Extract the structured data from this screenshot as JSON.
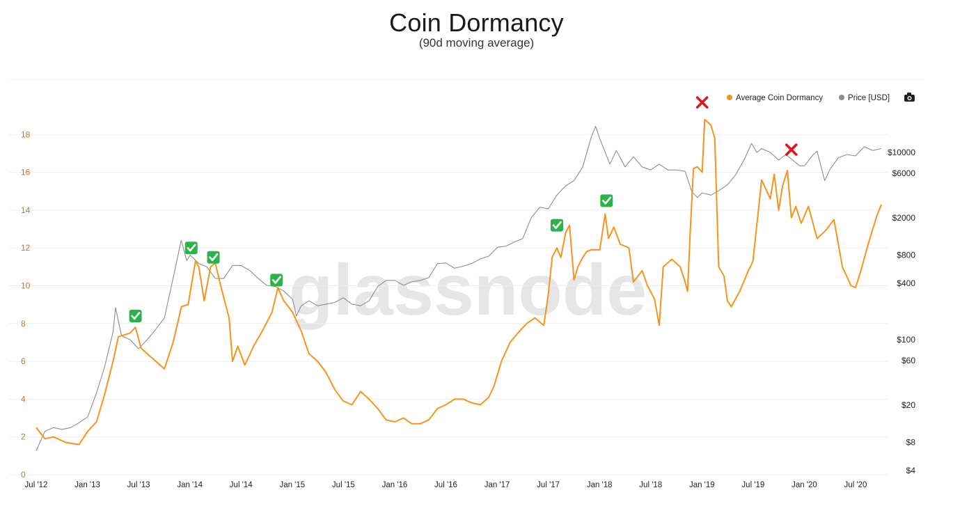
{
  "chart_data": {
    "type": "line",
    "title": "Coin Dormancy",
    "subtitle": "(90d moving average)",
    "watermark": "glassnode",
    "legend": {
      "placement": "top-right",
      "items": [
        {
          "label": "Average Coin Dormancy",
          "color": "#f7931a"
        },
        {
          "label": "Price [USD]",
          "color": "#8c8c8c"
        }
      ]
    },
    "camera_icon": "camera-icon",
    "grid": true,
    "x_axis": {
      "ticks": [
        "Jul '12",
        "Jan '13",
        "Jul '13",
        "Jan '14",
        "Jul '14",
        "Jan '15",
        "Jul '15",
        "Jan '16",
        "Jul '16",
        "Jan '17",
        "Jul '17",
        "Jan '18",
        "Jul '18",
        "Jan '19",
        "Jul '19",
        "Jan '20",
        "Jul '20"
      ],
      "range": [
        "2012-07-01",
        "2020-10-01"
      ]
    },
    "y_left": {
      "label": "",
      "range": [
        0,
        20
      ],
      "ticks": [
        0,
        2,
        4,
        6,
        8,
        10,
        12,
        14,
        16,
        18
      ],
      "color": "#c47a1a"
    },
    "y_right": {
      "label": "",
      "scale": "log",
      "range": [
        4,
        15000
      ],
      "ticks": [
        {
          "value": 4,
          "label": "$4"
        },
        {
          "value": 8,
          "label": "$8"
        },
        {
          "value": 20,
          "label": "$20"
        },
        {
          "value": 60,
          "label": "$60"
        },
        {
          "value": 100,
          "label": "$100"
        },
        {
          "value": 400,
          "label": "$400"
        },
        {
          "value": 800,
          "label": "$800"
        },
        {
          "value": 2000,
          "label": "$2000"
        },
        {
          "value": 6000,
          "label": "$6000"
        },
        {
          "value": 10000,
          "label": "$10000"
        }
      ]
    },
    "series": [
      {
        "name": "Average Coin Dormancy",
        "axis": "left",
        "color": "#f7931a",
        "points": [
          [
            "2012-07-01",
            2.5
          ],
          [
            "2012-08-01",
            1.9
          ],
          [
            "2012-09-01",
            2.0
          ],
          [
            "2012-10-15",
            1.7
          ],
          [
            "2012-12-01",
            1.6
          ],
          [
            "2013-01-01",
            2.3
          ],
          [
            "2013-02-01",
            2.8
          ],
          [
            "2013-03-01",
            4.2
          ],
          [
            "2013-04-01",
            6.0
          ],
          [
            "2013-04-20",
            7.3
          ],
          [
            "2013-06-01",
            7.5
          ],
          [
            "2013-06-20",
            7.8
          ],
          [
            "2013-07-10",
            6.7
          ],
          [
            "2013-08-01",
            6.4
          ],
          [
            "2013-09-01",
            6.0
          ],
          [
            "2013-10-01",
            5.6
          ],
          [
            "2013-11-01",
            7.0
          ],
          [
            "2013-12-01",
            8.9
          ],
          [
            "2013-12-25",
            9.0
          ],
          [
            "2014-01-05",
            10.0
          ],
          [
            "2014-01-20",
            11.3
          ],
          [
            "2014-02-01",
            11.0
          ],
          [
            "2014-02-20",
            9.2
          ],
          [
            "2014-03-15",
            11.0
          ],
          [
            "2014-04-01",
            11.2
          ],
          [
            "2014-04-20",
            10.0
          ],
          [
            "2014-05-20",
            8.3
          ],
          [
            "2014-06-01",
            6.0
          ],
          [
            "2014-06-20",
            6.8
          ],
          [
            "2014-07-15",
            5.8
          ],
          [
            "2014-08-15",
            6.8
          ],
          [
            "2014-09-15",
            7.6
          ],
          [
            "2014-10-20",
            8.6
          ],
          [
            "2014-11-10",
            9.9
          ],
          [
            "2014-12-01",
            9.2
          ],
          [
            "2015-01-01",
            8.6
          ],
          [
            "2015-02-01",
            7.6
          ],
          [
            "2015-03-01",
            6.4
          ],
          [
            "2015-04-01",
            6.0
          ],
          [
            "2015-05-01",
            5.4
          ],
          [
            "2015-06-01",
            4.5
          ],
          [
            "2015-07-01",
            3.9
          ],
          [
            "2015-08-01",
            3.7
          ],
          [
            "2015-09-01",
            4.4
          ],
          [
            "2015-10-01",
            4.0
          ],
          [
            "2015-11-01",
            3.5
          ],
          [
            "2015-12-01",
            2.9
          ],
          [
            "2016-01-01",
            2.8
          ],
          [
            "2016-02-01",
            3.0
          ],
          [
            "2016-03-01",
            2.7
          ],
          [
            "2016-04-01",
            2.7
          ],
          [
            "2016-05-01",
            2.9
          ],
          [
            "2016-06-01",
            3.5
          ],
          [
            "2016-07-01",
            3.7
          ],
          [
            "2016-08-01",
            4.0
          ],
          [
            "2016-09-01",
            4.0
          ],
          [
            "2016-10-01",
            3.8
          ],
          [
            "2016-11-01",
            3.7
          ],
          [
            "2016-12-01",
            4.1
          ],
          [
            "2016-12-20",
            4.7
          ],
          [
            "2017-01-15",
            6.0
          ],
          [
            "2017-02-15",
            7.0
          ],
          [
            "2017-03-15",
            7.5
          ],
          [
            "2017-04-15",
            8.0
          ],
          [
            "2017-05-15",
            8.3
          ],
          [
            "2017-06-15",
            7.9
          ],
          [
            "2017-07-01",
            9.5
          ],
          [
            "2017-07-15",
            11.5
          ],
          [
            "2017-08-01",
            12.0
          ],
          [
            "2017-08-15",
            11.5
          ],
          [
            "2017-09-01",
            12.8
          ],
          [
            "2017-09-15",
            13.2
          ],
          [
            "2017-10-01",
            10.3
          ],
          [
            "2017-10-15",
            11.0
          ],
          [
            "2017-11-01",
            11.5
          ],
          [
            "2017-11-15",
            11.8
          ],
          [
            "2017-12-01",
            11.9
          ],
          [
            "2018-01-01",
            11.9
          ],
          [
            "2018-01-20",
            13.8
          ],
          [
            "2018-02-01",
            12.5
          ],
          [
            "2018-02-20",
            13.1
          ],
          [
            "2018-03-15",
            12.2
          ],
          [
            "2018-04-15",
            12.0
          ],
          [
            "2018-05-01",
            10.2
          ],
          [
            "2018-06-01",
            10.8
          ],
          [
            "2018-06-20",
            10.0
          ],
          [
            "2018-07-15",
            9.3
          ],
          [
            "2018-08-01",
            7.9
          ],
          [
            "2018-08-15",
            11.0
          ],
          [
            "2018-09-15",
            11.4
          ],
          [
            "2018-10-15",
            11.0
          ],
          [
            "2018-11-01",
            10.2
          ],
          [
            "2018-11-10",
            9.7
          ],
          [
            "2018-11-20",
            13.0
          ],
          [
            "2018-12-01",
            16.2
          ],
          [
            "2018-12-15",
            16.3
          ],
          [
            "2019-01-01",
            16.0
          ],
          [
            "2019-01-10",
            18.8
          ],
          [
            "2019-02-01",
            18.5
          ],
          [
            "2019-02-15",
            17.8
          ],
          [
            "2019-03-01",
            11.0
          ],
          [
            "2019-03-20",
            10.5
          ],
          [
            "2019-04-01",
            9.2
          ],
          [
            "2019-04-15",
            8.9
          ],
          [
            "2019-05-15",
            9.7
          ],
          [
            "2019-06-15",
            10.8
          ],
          [
            "2019-07-01",
            11.3
          ],
          [
            "2019-08-01",
            15.6
          ],
          [
            "2019-09-01",
            14.6
          ],
          [
            "2019-09-15",
            15.9
          ],
          [
            "2019-10-01",
            14.0
          ],
          [
            "2019-10-15",
            15.3
          ],
          [
            "2019-11-01",
            16.1
          ],
          [
            "2019-11-15",
            13.6
          ],
          [
            "2019-12-01",
            14.2
          ],
          [
            "2019-12-20",
            13.3
          ],
          [
            "2020-01-15",
            14.2
          ],
          [
            "2020-02-15",
            12.5
          ],
          [
            "2020-03-15",
            12.9
          ],
          [
            "2020-04-15",
            13.5
          ],
          [
            "2020-05-15",
            11.0
          ],
          [
            "2020-06-15",
            10.0
          ],
          [
            "2020-07-01",
            9.9
          ],
          [
            "2020-07-20",
            10.8
          ],
          [
            "2020-08-15",
            12.2
          ],
          [
            "2020-09-15",
            13.7
          ],
          [
            "2020-10-01",
            14.3
          ]
        ]
      },
      {
        "name": "Price [USD]",
        "axis": "right",
        "scale": "log",
        "color": "#8c8c8c",
        "points": [
          [
            "2012-07-01",
            6.5
          ],
          [
            "2012-08-01",
            10.5
          ],
          [
            "2012-09-01",
            11.5
          ],
          [
            "2012-10-01",
            11.0
          ],
          [
            "2012-11-01",
            11.5
          ],
          [
            "2012-12-01",
            13.0
          ],
          [
            "2013-01-01",
            15
          ],
          [
            "2013-02-01",
            27
          ],
          [
            "2013-03-01",
            50
          ],
          [
            "2013-04-01",
            120
          ],
          [
            "2013-04-10",
            220
          ],
          [
            "2013-05-01",
            110
          ],
          [
            "2013-06-01",
            100
          ],
          [
            "2013-07-01",
            80
          ],
          [
            "2013-08-01",
            100
          ],
          [
            "2013-09-01",
            130
          ],
          [
            "2013-10-01",
            170
          ],
          [
            "2013-11-01",
            450
          ],
          [
            "2013-11-30",
            1150
          ],
          [
            "2013-12-20",
            700
          ],
          [
            "2014-01-01",
            800
          ],
          [
            "2014-02-01",
            650
          ],
          [
            "2014-03-01",
            600
          ],
          [
            "2014-04-01",
            450
          ],
          [
            "2014-05-01",
            450
          ],
          [
            "2014-06-01",
            620
          ],
          [
            "2014-07-01",
            620
          ],
          [
            "2014-08-01",
            550
          ],
          [
            "2014-09-01",
            450
          ],
          [
            "2014-10-01",
            380
          ],
          [
            "2014-11-01",
            370
          ],
          [
            "2014-12-01",
            330
          ],
          [
            "2015-01-01",
            270
          ],
          [
            "2015-01-15",
            180
          ],
          [
            "2015-02-01",
            230
          ],
          [
            "2015-03-01",
            260
          ],
          [
            "2015-04-01",
            230
          ],
          [
            "2015-05-01",
            240
          ],
          [
            "2015-06-01",
            250
          ],
          [
            "2015-07-01",
            280
          ],
          [
            "2015-08-01",
            240
          ],
          [
            "2015-09-01",
            230
          ],
          [
            "2015-10-01",
            260
          ],
          [
            "2015-11-01",
            370
          ],
          [
            "2015-12-01",
            430
          ],
          [
            "2016-01-01",
            430
          ],
          [
            "2016-02-01",
            380
          ],
          [
            "2016-03-01",
            415
          ],
          [
            "2016-04-01",
            430
          ],
          [
            "2016-05-01",
            460
          ],
          [
            "2016-06-01",
            650
          ],
          [
            "2016-07-01",
            660
          ],
          [
            "2016-08-01",
            580
          ],
          [
            "2016-09-01",
            610
          ],
          [
            "2016-10-01",
            650
          ],
          [
            "2016-11-01",
            730
          ],
          [
            "2016-12-01",
            780
          ],
          [
            "2017-01-01",
            970
          ],
          [
            "2017-02-01",
            1000
          ],
          [
            "2017-03-01",
            1100
          ],
          [
            "2017-04-01",
            1200
          ],
          [
            "2017-05-01",
            2000
          ],
          [
            "2017-06-01",
            2600
          ],
          [
            "2017-07-01",
            2500
          ],
          [
            "2017-08-01",
            3500
          ],
          [
            "2017-09-01",
            4400
          ],
          [
            "2017-10-01",
            5000
          ],
          [
            "2017-11-01",
            7000
          ],
          [
            "2017-12-01",
            14500
          ],
          [
            "2017-12-17",
            19000
          ],
          [
            "2018-01-01",
            14000
          ],
          [
            "2018-02-06",
            7500
          ],
          [
            "2018-03-01",
            10500
          ],
          [
            "2018-04-01",
            7000
          ],
          [
            "2018-05-01",
            9000
          ],
          [
            "2018-06-01",
            7000
          ],
          [
            "2018-07-01",
            6500
          ],
          [
            "2018-08-01",
            7500
          ],
          [
            "2018-09-01",
            6500
          ],
          [
            "2018-10-01",
            6500
          ],
          [
            "2018-11-01",
            6300
          ],
          [
            "2018-11-25",
            3800
          ],
          [
            "2018-12-15",
            3300
          ],
          [
            "2019-01-01",
            3700
          ],
          [
            "2019-02-01",
            3500
          ],
          [
            "2019-03-01",
            3900
          ],
          [
            "2019-04-01",
            4500
          ],
          [
            "2019-05-01",
            5800
          ],
          [
            "2019-06-01",
            8500
          ],
          [
            "2019-06-26",
            12500
          ],
          [
            "2019-07-15",
            10000
          ],
          [
            "2019-08-01",
            11000
          ],
          [
            "2019-09-01",
            10000
          ],
          [
            "2019-10-01",
            8300
          ],
          [
            "2019-10-26",
            9500
          ],
          [
            "2019-11-15",
            8500
          ],
          [
            "2019-12-15",
            7200
          ],
          [
            "2020-01-01",
            7200
          ],
          [
            "2020-02-01",
            9500
          ],
          [
            "2020-02-15",
            10300
          ],
          [
            "2020-03-13",
            5000
          ],
          [
            "2020-04-01",
            6600
          ],
          [
            "2020-05-01",
            8800
          ],
          [
            "2020-06-01",
            9500
          ],
          [
            "2020-07-01",
            9200
          ],
          [
            "2020-08-01",
            11500
          ],
          [
            "2020-09-01",
            10500
          ],
          [
            "2020-10-01",
            11000
          ]
        ]
      }
    ],
    "annotations": [
      {
        "type": "check",
        "date": "2013-06-20",
        "left_value": 8.4
      },
      {
        "type": "check",
        "date": "2014-01-05",
        "left_value": 12.0
      },
      {
        "type": "check",
        "date": "2014-03-25",
        "left_value": 11.5
      },
      {
        "type": "check",
        "date": "2014-11-05",
        "left_value": 10.3
      },
      {
        "type": "check",
        "date": "2017-08-01",
        "left_value": 13.2
      },
      {
        "type": "check",
        "date": "2018-01-25",
        "left_value": 14.5
      },
      {
        "type": "cross",
        "date": "2019-01-01",
        "left_value": 19.7
      },
      {
        "type": "cross",
        "date": "2019-11-15",
        "left_value": 17.2
      }
    ]
  }
}
